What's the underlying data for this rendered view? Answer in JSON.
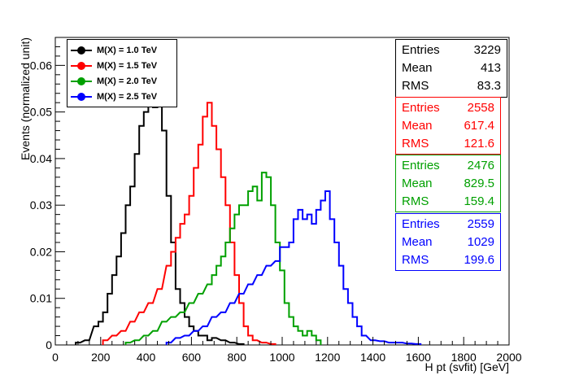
{
  "chart_data": {
    "type": "line",
    "step": true,
    "xlabel": "H pt (svfit) [GeV]",
    "ylabel": "Events (normalized unit)",
    "xlim": [
      0,
      2000
    ],
    "ylim": [
      0,
      0.066
    ],
    "x_ticks": [
      "0",
      "200",
      "400",
      "600",
      "800",
      "1000",
      "1200",
      "1400",
      "1600",
      "1800",
      "2000"
    ],
    "y_ticks": [
      "0",
      "0.01",
      "0.02",
      "0.03",
      "0.04",
      "0.05",
      "0.06"
    ],
    "legend_position": "top-left",
    "series": [
      {
        "name": "M(X) = 1.0 TeV",
        "color": "#000000",
        "x": [
          100,
          140,
          180,
          200,
          220,
          240,
          260,
          280,
          300,
          320,
          340,
          360,
          380,
          400,
          420,
          440,
          460,
          480,
          500,
          520,
          540,
          560,
          580,
          600,
          620,
          640,
          660,
          680,
          700,
          740,
          780,
          820
        ],
        "y": [
          0.0005,
          0.001,
          0.004,
          0.005,
          0.007,
          0.011,
          0.015,
          0.019,
          0.024,
          0.03,
          0.034,
          0.041,
          0.047,
          0.05,
          0.052,
          0.051,
          0.055,
          0.046,
          0.032,
          0.022,
          0.012,
          0.009,
          0.006,
          0.004,
          0.003,
          0.002,
          0.002,
          0.001,
          0.0015,
          0.001,
          0.0005,
          0.0002
        ]
      },
      {
        "name": "M(X) = 1.5 TeV",
        "color": "#ff0000",
        "x": [
          220,
          260,
          300,
          340,
          380,
          420,
          460,
          500,
          520,
          540,
          560,
          580,
          600,
          620,
          640,
          660,
          680,
          700,
          720,
          740,
          760,
          780,
          800,
          820,
          840,
          860,
          880,
          920,
          960
        ],
        "y": [
          0.001,
          0.002,
          0.003,
          0.005,
          0.007,
          0.009,
          0.012,
          0.017,
          0.02,
          0.023,
          0.026,
          0.028,
          0.032,
          0.038,
          0.043,
          0.049,
          0.052,
          0.047,
          0.042,
          0.036,
          0.03,
          0.022,
          0.015,
          0.009,
          0.004,
          0.002,
          0.001,
          0.0005,
          0.0002
        ]
      },
      {
        "name": "M(X) = 2.0 TeV",
        "color": "#00a000",
        "x": [
          320,
          360,
          400,
          440,
          480,
          520,
          560,
          600,
          640,
          680,
          700,
          720,
          740,
          760,
          780,
          800,
          820,
          840,
          860,
          880,
          900,
          920,
          940,
          960,
          980,
          1000,
          1020,
          1040,
          1060,
          1080,
          1100,
          1120,
          1140,
          1160
        ],
        "y": [
          0.0005,
          0.001,
          0.002,
          0.003,
          0.005,
          0.006,
          0.007,
          0.009,
          0.011,
          0.013,
          0.015,
          0.017,
          0.019,
          0.022,
          0.025,
          0.028,
          0.03,
          0.03,
          0.033,
          0.034,
          0.031,
          0.037,
          0.036,
          0.03,
          0.022,
          0.016,
          0.009,
          0.006,
          0.004,
          0.003,
          0.002,
          0.003,
          0.002,
          0.001
        ]
      },
      {
        "name": "M(X) = 2.5 TeV",
        "color": "#0000ff",
        "x": [
          500,
          540,
          580,
          620,
          660,
          700,
          740,
          780,
          820,
          860,
          900,
          940,
          980,
          1000,
          1020,
          1040,
          1060,
          1080,
          1100,
          1120,
          1140,
          1160,
          1180,
          1200,
          1220,
          1240,
          1260,
          1280,
          1300,
          1320,
          1340,
          1360,
          1400,
          1440,
          1480,
          1520,
          1560,
          1600
        ],
        "y": [
          0.0005,
          0.0015,
          0.002,
          0.003,
          0.004,
          0.006,
          0.007,
          0.009,
          0.011,
          0.013,
          0.015,
          0.017,
          0.018,
          0.021,
          0.021,
          0.022,
          0.027,
          0.029,
          0.027,
          0.028,
          0.026,
          0.029,
          0.031,
          0.033,
          0.027,
          0.022,
          0.017,
          0.012,
          0.009,
          0.006,
          0.004,
          0.002,
          0.001,
          0.0008,
          0.0005,
          0.0005,
          0.0003,
          0.0002
        ]
      }
    ],
    "stats": [
      {
        "entries_label": "Entries",
        "entries": "3229",
        "mean_label": "Mean",
        "mean": "413",
        "rms_label": "RMS",
        "rms": "83.3",
        "color": "#000000"
      },
      {
        "entries_label": "Entries",
        "entries": "2558",
        "mean_label": "Mean",
        "mean": "617.4",
        "rms_label": "RMS",
        "rms": "121.6",
        "color": "#ff0000"
      },
      {
        "entries_label": "Entries",
        "entries": "2476",
        "mean_label": "Mean",
        "mean": "829.5",
        "rms_label": "RMS",
        "rms": "159.4",
        "color": "#00a000"
      },
      {
        "entries_label": "Entries",
        "entries": "2559",
        "mean_label": "Mean",
        "mean": "1029",
        "rms_label": "RMS",
        "rms": "199.6",
        "color": "#0000ff"
      }
    ]
  }
}
